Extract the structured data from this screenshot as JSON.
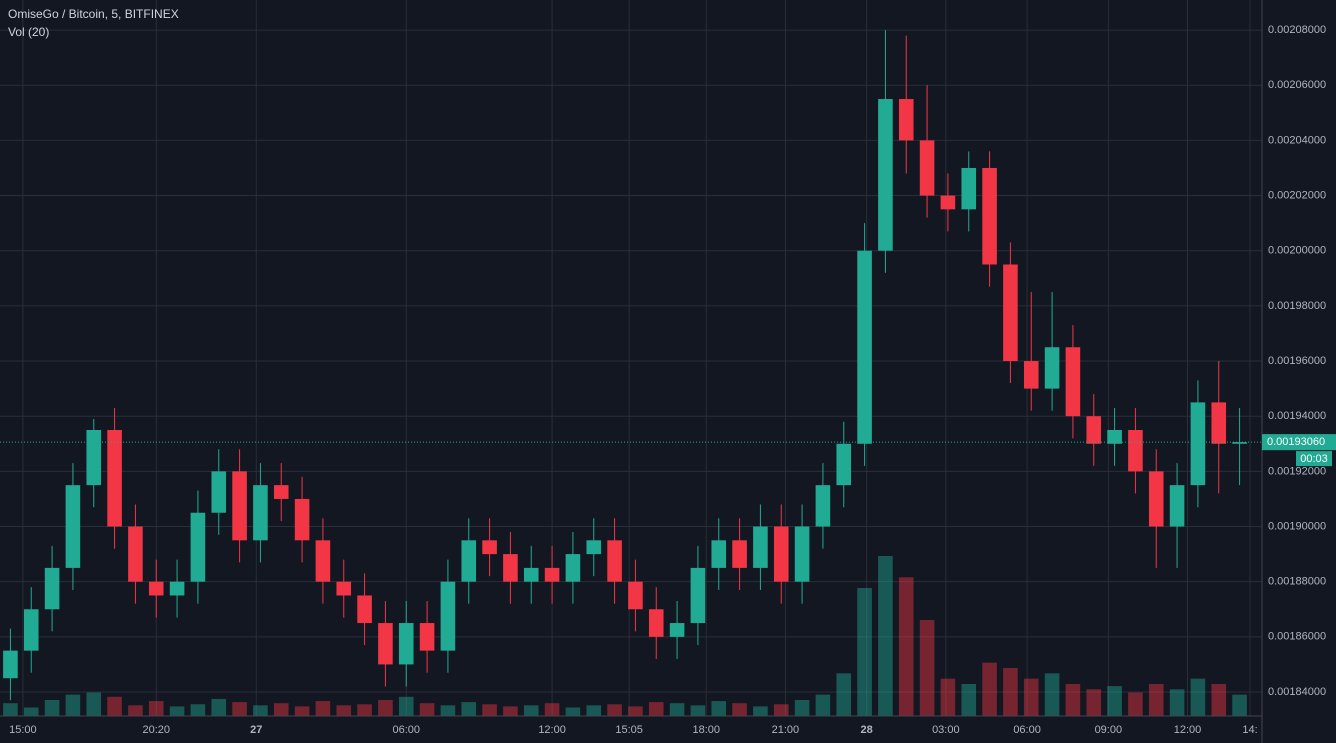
{
  "chart_data": {
    "type": "candlestick",
    "title": "OmiseGo / Bitcoin, 5, BITFINEX",
    "subtitle": "Vol (20)",
    "categories": [
      null,
      null,
      null,
      null,
      null,
      null,
      null,
      null,
      null,
      null,
      null,
      null,
      null,
      null,
      null,
      null,
      null,
      null,
      null,
      null,
      null,
      null,
      null,
      null,
      null,
      null,
      null,
      null,
      null,
      null,
      null,
      null,
      null,
      null,
      null,
      null,
      null,
      null,
      null,
      null,
      null,
      null,
      null,
      null,
      null,
      null,
      null,
      null,
      null,
      null,
      null,
      null,
      null,
      null,
      null,
      null,
      null,
      null,
      null,
      null
    ],
    "open": [
      0.001845,
      0.001855,
      0.00187,
      0.001885,
      0.001915,
      0.001935,
      0.0019,
      0.00188,
      0.001875,
      0.00188,
      0.001905,
      0.00192,
      0.001895,
      0.001915,
      0.00191,
      0.001895,
      0.00188,
      0.001875,
      0.001865,
      0.00185,
      0.001865,
      0.001855,
      0.00188,
      0.001895,
      0.00189,
      0.00188,
      0.001885,
      0.00188,
      0.00189,
      0.001895,
      0.00188,
      0.00187,
      0.00186,
      0.001865,
      0.001885,
      0.001895,
      0.001885,
      0.0019,
      0.00188,
      0.0019,
      0.001915,
      0.00193,
      0.002,
      0.002055,
      0.00204,
      0.00202,
      0.002015,
      0.00203,
      0.001995,
      0.00196,
      0.00195,
      0.001965,
      0.00194,
      0.00193,
      0.001935,
      0.00192,
      0.0019,
      0.001915,
      0.001945,
      0.00193
    ],
    "close": [
      0.001855,
      0.00187,
      0.001885,
      0.001915,
      0.001935,
      0.0019,
      0.00188,
      0.001875,
      0.00188,
      0.001905,
      0.00192,
      0.001895,
      0.001915,
      0.00191,
      0.001895,
      0.00188,
      0.001875,
      0.001865,
      0.00185,
      0.001865,
      0.001855,
      0.00188,
      0.001895,
      0.00189,
      0.00188,
      0.001885,
      0.00188,
      0.00189,
      0.001895,
      0.00188,
      0.00187,
      0.00186,
      0.001865,
      0.001885,
      0.001895,
      0.001885,
      0.0019,
      0.00188,
      0.0019,
      0.001915,
      0.00193,
      0.002,
      0.002055,
      0.00204,
      0.00202,
      0.002015,
      0.00203,
      0.001995,
      0.00196,
      0.00195,
      0.001965,
      0.00194,
      0.00193,
      0.001935,
      0.00192,
      0.0019,
      0.001915,
      0.001945,
      0.00193,
      0.0019306
    ],
    "high": [
      0.001863,
      0.001878,
      0.001893,
      0.001923,
      0.001939,
      0.001943,
      0.001908,
      0.001888,
      0.001888,
      0.001913,
      0.001928,
      0.001928,
      0.001923,
      0.001923,
      0.001918,
      0.001903,
      0.001888,
      0.001883,
      0.001873,
      0.001873,
      0.001873,
      0.001888,
      0.001903,
      0.001903,
      0.001898,
      0.001893,
      0.001893,
      0.001898,
      0.001903,
      0.001903,
      0.001888,
      0.001878,
      0.001873,
      0.001893,
      0.001903,
      0.001903,
      0.001908,
      0.001908,
      0.001908,
      0.001923,
      0.001938,
      0.00201,
      0.00208,
      0.002078,
      0.00206,
      0.002028,
      0.002036,
      0.002036,
      0.002003,
      0.001985,
      0.001985,
      0.001973,
      0.001948,
      0.001943,
      0.001943,
      0.001928,
      0.001923,
      0.001953,
      0.00196,
      0.001943
    ],
    "low": [
      0.001837,
      0.001847,
      0.001862,
      0.001877,
      0.001907,
      0.001892,
      0.001872,
      0.001867,
      0.001867,
      0.001872,
      0.001897,
      0.001887,
      0.001887,
      0.001902,
      0.001887,
      0.001872,
      0.001867,
      0.001857,
      0.001842,
      0.001842,
      0.001847,
      0.001847,
      0.001872,
      0.001882,
      0.001872,
      0.001872,
      0.001872,
      0.001872,
      0.001882,
      0.001872,
      0.001862,
      0.001852,
      0.001852,
      0.001857,
      0.001877,
      0.001877,
      0.001877,
      0.001872,
      0.001872,
      0.001892,
      0.001907,
      0.001922,
      0.001992,
      0.002028,
      0.002012,
      0.002007,
      0.002007,
      0.001987,
      0.001952,
      0.001942,
      0.001942,
      0.001932,
      0.001922,
      0.001922,
      0.001912,
      0.001885,
      0.001885,
      0.001907,
      0.001912,
      0.001915
    ],
    "volume": [
      12,
      8,
      15,
      20,
      22,
      18,
      10,
      14,
      9,
      11,
      16,
      13,
      10,
      12,
      9,
      14,
      10,
      11,
      15,
      18,
      12,
      10,
      13,
      11,
      9,
      10,
      12,
      8,
      10,
      11,
      9,
      13,
      12,
      10,
      14,
      12,
      9,
      11,
      15,
      20,
      40,
      120,
      150,
      130,
      90,
      35,
      30,
      50,
      45,
      35,
      40,
      30,
      25,
      28,
      22,
      30,
      25,
      35,
      30,
      20
    ],
    "up_color": "#22ab94",
    "down_color": "#f23645",
    "ylim": [
      0.0018313,
      0.0020909
    ],
    "yticks": [
      {
        "value": 0.00184,
        "label": "0.00184000"
      },
      {
        "value": 0.00186,
        "label": "0.00186000"
      },
      {
        "value": 0.00188,
        "label": "0.00188000"
      },
      {
        "value": 0.0019,
        "label": "0.00190000"
      },
      {
        "value": 0.00192,
        "label": "0.00192000"
      },
      {
        "value": 0.00194,
        "label": "0.00194000"
      },
      {
        "value": 0.00196,
        "label": "0.00196000"
      },
      {
        "value": 0.00198,
        "label": "0.00198000"
      },
      {
        "value": 0.002,
        "label": "0.00200000"
      },
      {
        "value": 0.00202,
        "label": "0.00202000"
      },
      {
        "value": 0.00204,
        "label": "0.00204000"
      },
      {
        "value": 0.00206,
        "label": "0.00206000"
      },
      {
        "value": 0.00208,
        "label": "0.00208000"
      }
    ],
    "xticks": [
      {
        "value": 0.6,
        "label": "15:00"
      },
      {
        "value": 7,
        "label": "20:20"
      },
      {
        "value": 11.8,
        "label": "27"
      },
      {
        "value": 19,
        "label": "06:00"
      },
      {
        "value": 26,
        "label": "12:00"
      },
      {
        "value": 29.7,
        "label": "15:05"
      },
      {
        "value": 33.4,
        "label": "18:00"
      },
      {
        "value": 37.2,
        "label": "21:00"
      },
      {
        "value": 41.1,
        "label": "28"
      },
      {
        "value": 44.9,
        "label": "03:00"
      },
      {
        "value": 48.8,
        "label": "06:00"
      },
      {
        "value": 52.7,
        "label": "09:00"
      },
      {
        "value": 56.5,
        "label": "12:00"
      },
      {
        "value": 59.5,
        "label": "14:"
      }
    ],
    "last_price": {
      "value": 0.0019306,
      "label": "0.00193060"
    },
    "countdown": "00:03",
    "grid": true
  }
}
